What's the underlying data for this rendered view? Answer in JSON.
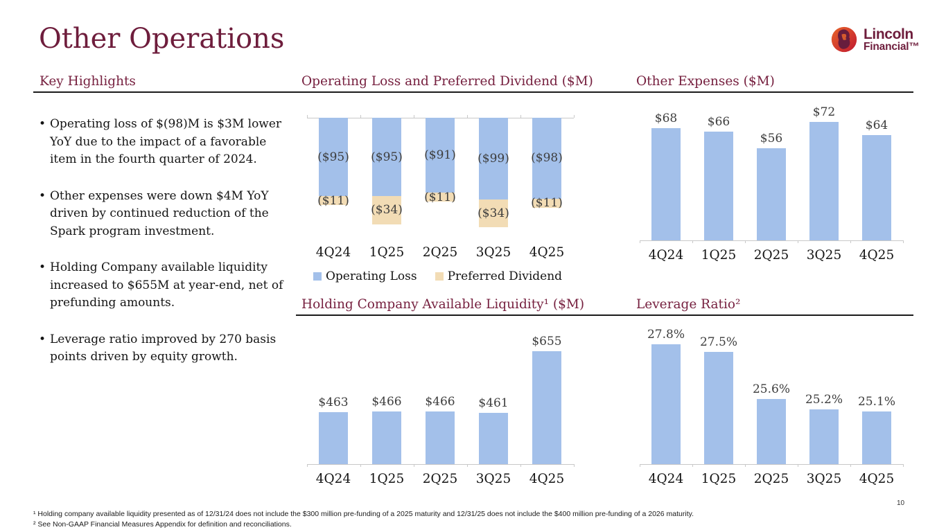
{
  "slide": {
    "title": "Other Operations",
    "page_number": "10"
  },
  "logo": {
    "brand_top": "Lincoln",
    "brand_bottom": "Financial™",
    "icon": "lincoln-portrait-icon",
    "circle_color": "#D8472B",
    "text_color": "#6E1D3C"
  },
  "highlights": {
    "heading": "Key Highlights",
    "bullets": [
      "Operating loss of $(98)M is $3M lower YoY due to the impact of a favorable item in the fourth quarter of 2024.",
      "Other expenses were down $4M YoY driven by continued reduction of the Spark program investment.",
      "Holding Company available liquidity increased to $655M at year-end, net of prefunding amounts.",
      "Leverage ratio improved by 270 basis points driven by equity growth."
    ]
  },
  "colors": {
    "maroon": "#6E1D3C",
    "bar_blue": "#A3C0EA",
    "bar_tan": "#F2DCB5",
    "value_label": "#3D3D3D",
    "axis": "#C8C8C8",
    "rule": "#1A1A1A"
  },
  "chart_data": [
    {
      "id": "operating-loss-preferred-dividend",
      "type": "bar",
      "stacked": true,
      "orientation": "columns-hang-down-from-zero",
      "title": "Operating Loss and Preferred Dividend ($M)",
      "categories": [
        "4Q24",
        "1Q25",
        "2Q25",
        "3Q25",
        "4Q25"
      ],
      "series": [
        {
          "name": "Operating Loss",
          "color": "#A3C0EA",
          "values": [
            -95,
            -95,
            -91,
            -99,
            -98
          ],
          "labels": [
            "($95)",
            "($95)",
            "($91)",
            "($99)",
            "($98)"
          ]
        },
        {
          "name": "Preferred Dividend",
          "color": "#F2DCB5",
          "values": [
            -11,
            -34,
            -11,
            -34,
            -11
          ],
          "labels": [
            "($11)",
            "($34)",
            "($11)",
            "($34)",
            "($11)"
          ]
        }
      ],
      "legend_position": "bottom",
      "ylim": [
        -140,
        0
      ],
      "grid": false
    },
    {
      "id": "other-expenses",
      "type": "bar",
      "title": "Other Expenses ($M)",
      "categories": [
        "4Q24",
        "1Q25",
        "2Q25",
        "3Q25",
        "4Q25"
      ],
      "values": [
        68,
        66,
        56,
        72,
        64
      ],
      "labels": [
        "$68",
        "$66",
        "$56",
        "$72",
        "$64"
      ],
      "bar_color": "#A3C0EA",
      "ylim": [
        0,
        85
      ],
      "grid": false
    },
    {
      "id": "holding-company-available-liquidity",
      "type": "bar",
      "title": "Holding Company Available Liquidity¹ ($M)",
      "categories": [
        "4Q24",
        "1Q25",
        "2Q25",
        "3Q25",
        "4Q25"
      ],
      "values": [
        463,
        466,
        466,
        461,
        655
      ],
      "labels": [
        "$463",
        "$466",
        "$466",
        "$461",
        "$655"
      ],
      "bar_color": "#A3C0EA",
      "ylim": [
        300,
        700
      ],
      "grid": false
    },
    {
      "id": "leverage-ratio",
      "type": "bar",
      "title": "Leverage Ratio²",
      "categories": [
        "4Q24",
        "1Q25",
        "2Q25",
        "3Q25",
        "4Q25"
      ],
      "values": [
        27.8,
        27.5,
        25.6,
        25.2,
        25.1
      ],
      "labels": [
        "27.8%",
        "27.5%",
        "25.6%",
        "25.2%",
        "25.1%"
      ],
      "bar_color": "#A3C0EA",
      "ylim": [
        23,
        29
      ],
      "grid": false
    }
  ],
  "footnotes": [
    "¹ Holding company available liquidity presented as of 12/31/24 does not include the $300 million pre-funding of a 2025 maturity and 12/31/25 does not include the $400 million pre-funding of a 2026 maturity.",
    "² See Non-GAAP Financial Measures Appendix for definition and reconciliations."
  ]
}
